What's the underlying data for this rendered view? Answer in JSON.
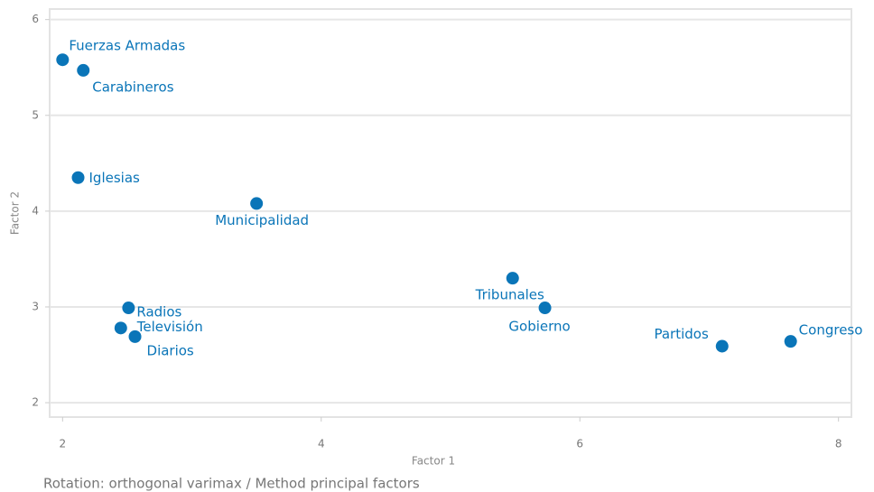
{
  "chart_data": {
    "type": "scatter",
    "x_label": "Factor 1",
    "y_label": "Factor 2",
    "note": "Rotation: orthogonal varimax / Method principal factors",
    "point_labels": [
      "Fuerzas Armadas",
      "Carabineros",
      "Iglesias",
      "Municipalidad",
      "Radios",
      "Televisión",
      "Diarios",
      "Tribunales",
      "Gobierno",
      "Partidos",
      "Congreso"
    ],
    "x": [
      2.0,
      2.16,
      2.12,
      3.5,
      2.51,
      2.45,
      2.56,
      5.48,
      5.73,
      7.1,
      7.63
    ],
    "values": [
      5.58,
      5.47,
      4.35,
      4.08,
      2.99,
      2.78,
      2.69,
      3.3,
      2.99,
      2.59,
      2.64
    ],
    "color": "#0a75b8",
    "xlim": [
      1.9,
      8.1
    ],
    "ylim": [
      1.85,
      6.11
    ],
    "xticks": [
      2,
      4,
      6,
      8
    ],
    "yticks": [
      2,
      3,
      4,
      5,
      6
    ],
    "grid": "y"
  }
}
